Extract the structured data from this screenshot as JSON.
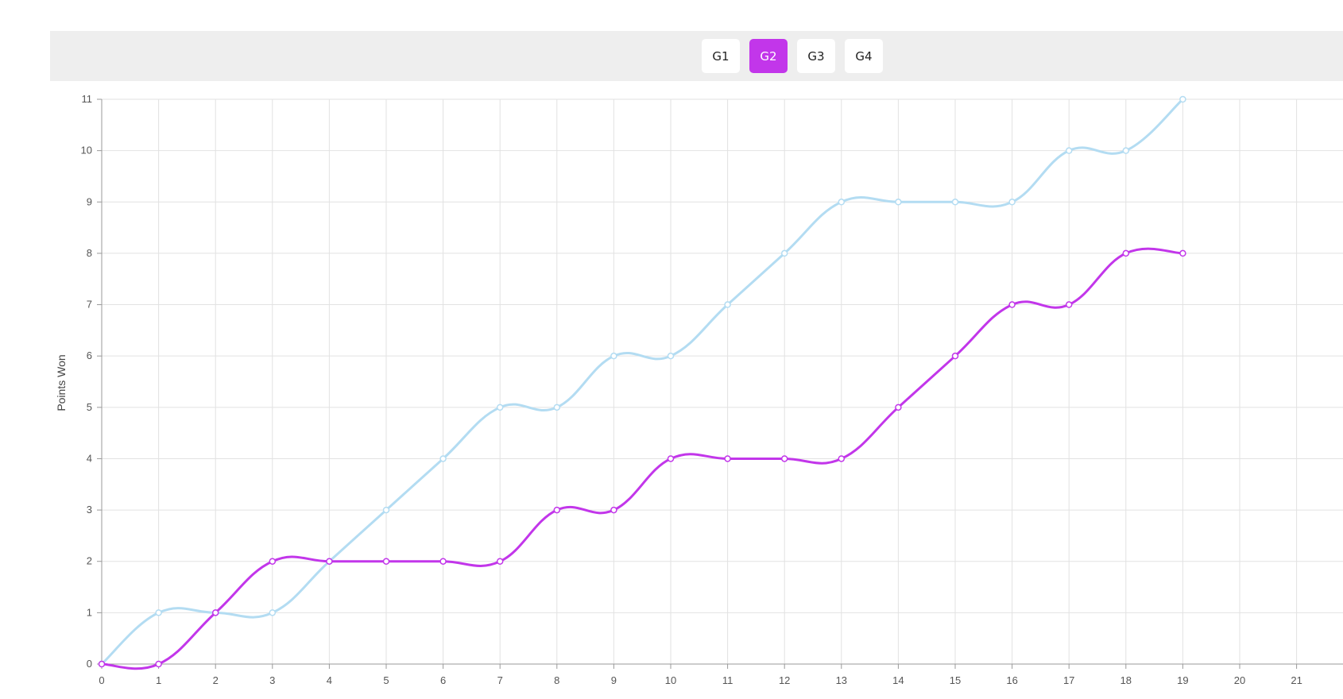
{
  "game_tabs": [
    {
      "label": "G1",
      "active": false
    },
    {
      "label": "G2",
      "active": true
    },
    {
      "label": "G3",
      "active": false
    },
    {
      "label": "G4",
      "active": false
    }
  ],
  "colors": {
    "active_tab": "#c236ea",
    "series_a": "#b3dcf2",
    "series_b": "#c236ea",
    "grid": "#e2e2e2",
    "axis": "#999999"
  },
  "chart_data": {
    "type": "line",
    "ylabel": "Points Won",
    "xlabel": "",
    "xlim": [
      0,
      22
    ],
    "ylim": [
      0,
      11
    ],
    "x_ticks": [
      0,
      1,
      2,
      3,
      4,
      5,
      6,
      7,
      8,
      9,
      10,
      11,
      12,
      13,
      14,
      15,
      16,
      17,
      18,
      19,
      20,
      21
    ],
    "y_ticks": [
      0,
      1,
      2,
      3,
      4,
      5,
      6,
      7,
      8,
      9,
      10,
      11
    ],
    "grid": true,
    "legend": "none",
    "x": [
      0,
      1,
      2,
      3,
      4,
      5,
      6,
      7,
      8,
      9,
      10,
      11,
      12,
      13,
      14,
      15,
      16,
      17,
      18,
      19
    ],
    "series": [
      {
        "color": "#b3dcf2",
        "values": [
          0,
          1,
          1,
          1,
          2,
          3,
          4,
          5,
          5,
          6,
          6,
          7,
          8,
          9,
          9,
          9,
          9,
          10,
          10,
          11
        ]
      },
      {
        "color": "#c236ea",
        "values": [
          0,
          0,
          1,
          2,
          2,
          2,
          2,
          2,
          3,
          3,
          4,
          4,
          4,
          4,
          5,
          6,
          7,
          7,
          8,
          8
        ]
      }
    ]
  }
}
